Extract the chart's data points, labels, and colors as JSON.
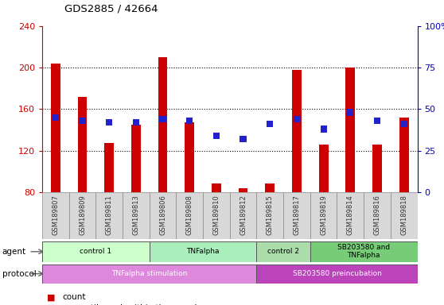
{
  "title": "GDS2885 / 42664",
  "samples": [
    "GSM189807",
    "GSM189809",
    "GSM189811",
    "GSM189813",
    "GSM189806",
    "GSM189808",
    "GSM189810",
    "GSM189812",
    "GSM189815",
    "GSM189817",
    "GSM189819",
    "GSM189814",
    "GSM189816",
    "GSM189818"
  ],
  "counts": [
    204,
    172,
    127,
    145,
    210,
    147,
    88,
    84,
    88,
    198,
    126,
    200,
    126,
    152
  ],
  "percentile": [
    45,
    43,
    42,
    42,
    44,
    43,
    34,
    32,
    41,
    44,
    38,
    48,
    43,
    41
  ],
  "ylim_left": [
    80,
    240
  ],
  "ylim_right": [
    0,
    100
  ],
  "yticks_left": [
    80,
    120,
    160,
    200,
    240
  ],
  "yticks_right": [
    0,
    25,
    50,
    75,
    100
  ],
  "bar_color": "#cc0000",
  "percentile_color": "#2222cc",
  "agent_groups": [
    {
      "label": "control 1",
      "start": 0,
      "end": 4,
      "color": "#ccffcc"
    },
    {
      "label": "TNFalpha",
      "start": 4,
      "end": 8,
      "color": "#aaeebb"
    },
    {
      "label": "control 2",
      "start": 8,
      "end": 10,
      "color": "#aaddaa"
    },
    {
      "label": "SB203580 and\nTNFalpha",
      "start": 10,
      "end": 14,
      "color": "#77cc77"
    }
  ],
  "protocol_groups": [
    {
      "label": "TNFalpha stimulation",
      "start": 0,
      "end": 8,
      "color": "#dd88dd"
    },
    {
      "label": "SB203580 preincubation",
      "start": 8,
      "end": 14,
      "color": "#bb44bb"
    }
  ],
  "xlabel_color": "#444444",
  "left_axis_color": "#cc0000",
  "right_axis_color": "#0000cc",
  "grid_yticks": [
    120,
    160,
    200
  ],
  "bar_width": 0.35,
  "pct_marker_size": 5
}
